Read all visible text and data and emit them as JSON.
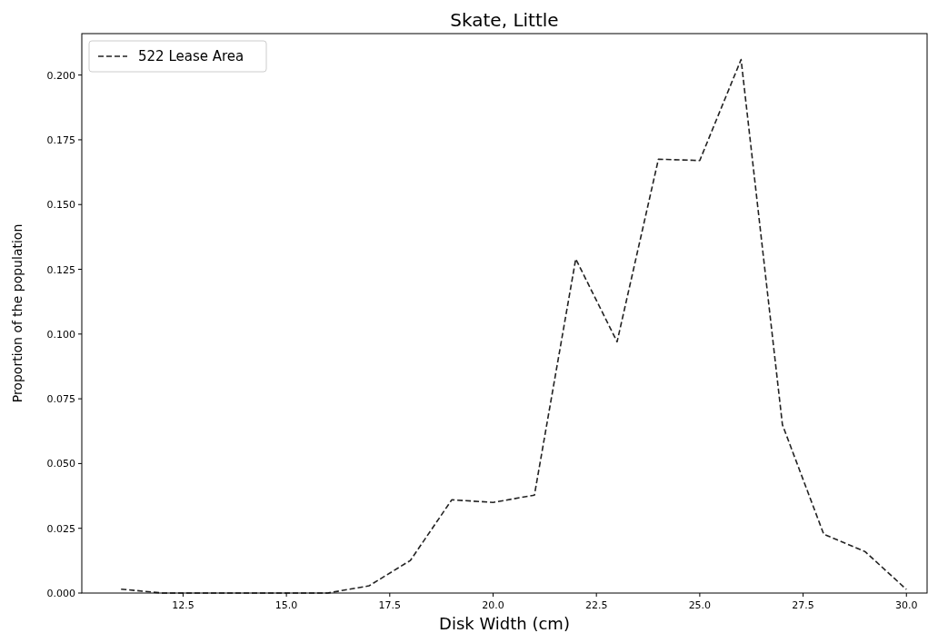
{
  "chart_data": {
    "type": "line",
    "title": "Skate, Little",
    "xlabel": "Disk Width (cm)",
    "ylabel": "Proportion of the population",
    "x": [
      11,
      12,
      13,
      14,
      15,
      16,
      17,
      18,
      19,
      20,
      21,
      22,
      23,
      24,
      25,
      26,
      27,
      28,
      29,
      30
    ],
    "series": [
      {
        "name": "522 Lease Area",
        "color": "#222222",
        "line_style": "dashed",
        "values": [
          0.0015,
          0,
          0,
          0,
          0,
          0,
          0.0028,
          0.0126,
          0.036,
          0.035,
          0.0378,
          0.129,
          0.097,
          0.1675,
          0.167,
          0.206,
          0.065,
          0.0227,
          0.016,
          0.0014
        ]
      }
    ],
    "xlim": [
      10.05,
      30.5
    ],
    "ylim": [
      0,
      0.216
    ],
    "xticks": [
      {
        "value": 12.5,
        "label": "12.5"
      },
      {
        "value": 15,
        "label": "15.0"
      },
      {
        "value": 17.5,
        "label": "17.5"
      },
      {
        "value": 20,
        "label": "20.0"
      },
      {
        "value": 22.5,
        "label": "22.5"
      },
      {
        "value": 25,
        "label": "25.0"
      },
      {
        "value": 27.5,
        "label": "27.5"
      },
      {
        "value": 30,
        "label": "30.0"
      }
    ],
    "yticks": [
      {
        "value": 0,
        "label": "0.000"
      },
      {
        "value": 0.025,
        "label": "0.025"
      },
      {
        "value": 0.05,
        "label": "0.050"
      },
      {
        "value": 0.075,
        "label": "0.075"
      },
      {
        "value": 0.1,
        "label": "0.100"
      },
      {
        "value": 0.125,
        "label": "0.125"
      },
      {
        "value": 0.15,
        "label": "0.150"
      },
      {
        "value": 0.175,
        "label": "0.175"
      },
      {
        "value": 0.2,
        "label": "0.200"
      }
    ],
    "legend": "top left",
    "grid": false
  }
}
